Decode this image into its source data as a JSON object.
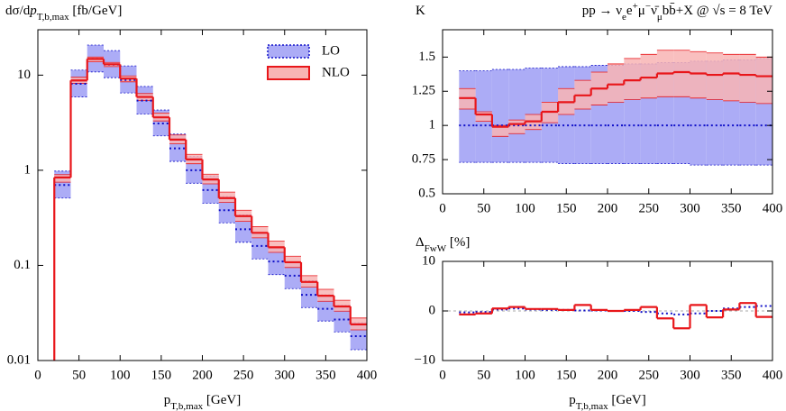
{
  "chart_data": [
    {
      "type": "histogram",
      "log_y": true,
      "ylabel": [
        {
          "text": "dσ/d"
        },
        {
          "text": "p"
        },
        {
          "text": "T,b,max",
          "shift": "sub"
        },
        {
          "text": " [fb/GeV]"
        }
      ],
      "xlabel": [
        {
          "text": "p"
        },
        {
          "text": "T,b,max",
          "shift": "sub"
        },
        {
          "text": " [GeV]"
        }
      ],
      "bins": [
        20,
        40,
        60,
        80,
        100,
        120,
        140,
        160,
        180,
        200,
        220,
        240,
        260,
        280,
        300,
        320,
        340,
        360,
        380,
        400
      ],
      "xlim": [
        0,
        400
      ],
      "xticks": [
        0,
        50,
        100,
        150,
        200,
        250,
        300,
        350,
        400
      ],
      "ylim": [
        0.01,
        30
      ],
      "yticks": [
        0.01,
        0.1,
        1,
        10
      ],
      "legend": "upper right",
      "series": [
        {
          "name": "LO",
          "color": "#1010c8",
          "fill": "#acacf6",
          "line_style": "dotted",
          "values": [
            0.7,
            8.1,
            14.8,
            12.9,
            8.9,
            5.4,
            3.1,
            1.7,
            1.0,
            0.62,
            0.38,
            0.24,
            0.16,
            0.11,
            0.078,
            0.049,
            0.035,
            0.027,
            0.018
          ],
          "band_low": [
            0.51,
            5.9,
            10.8,
            9.4,
            6.5,
            3.9,
            2.3,
            1.24,
            0.73,
            0.45,
            0.28,
            0.175,
            0.117,
            0.08,
            0.057,
            0.036,
            0.026,
            0.02,
            0.013
          ],
          "band_high": [
            0.98,
            11.3,
            20.7,
            18.1,
            12.5,
            7.6,
            4.3,
            2.4,
            1.4,
            0.87,
            0.53,
            0.34,
            0.22,
            0.154,
            0.109,
            0.069,
            0.049,
            0.038,
            0.025
          ]
        },
        {
          "name": "NLO",
          "color": "#e8161a",
          "fill": "#f8b4b4",
          "line_style": "solid",
          "values": [
            0.84,
            8.8,
            14.8,
            13,
            9.2,
            5.9,
            3.6,
            2.1,
            1.3,
            0.8,
            0.51,
            0.33,
            0.22,
            0.155,
            0.108,
            0.067,
            0.048,
            0.037,
            0.024
          ],
          "band_low": [
            0.75,
            8.2,
            13.8,
            12.3,
            8.5,
            5.4,
            3.3,
            1.9,
            1.17,
            0.72,
            0.46,
            0.29,
            0.195,
            0.137,
            0.095,
            0.059,
            0.042,
            0.033,
            0.021
          ],
          "band_high": [
            0.9,
            9.5,
            15.5,
            13.6,
            9.8,
            6.4,
            4.0,
            2.35,
            1.47,
            0.91,
            0.59,
            0.38,
            0.255,
            0.18,
            0.125,
            0.078,
            0.056,
            0.043,
            0.028
          ]
        }
      ]
    },
    {
      "type": "histogram",
      "ylabel": [
        {
          "text": "K"
        }
      ],
      "title": [
        {
          "text": "pp → ν"
        },
        {
          "text": "e",
          "shift": "sub"
        },
        {
          "text": "e"
        },
        {
          "text": "+",
          "shift": "super"
        },
        {
          "text": "μ"
        },
        {
          "text": "−",
          "shift": "super"
        },
        {
          "text": "ν̄"
        },
        {
          "text": "μ",
          "shift": "sub"
        },
        {
          "text": "bb̄+X @ √s = 8 TeV"
        }
      ],
      "bins": [
        20,
        40,
        60,
        80,
        100,
        120,
        140,
        160,
        180,
        200,
        220,
        240,
        260,
        280,
        300,
        320,
        340,
        360,
        380,
        400
      ],
      "xlim": [
        0,
        400
      ],
      "xticks": [
        0,
        50,
        100,
        150,
        200,
        250,
        300,
        350,
        400
      ],
      "ylim": [
        0.5,
        1.7
      ],
      "yticks": [
        0.5,
        0.75,
        1,
        1.25,
        1.5
      ],
      "series": [
        {
          "name": "LO",
          "color": "#1010c8",
          "fill": "#acacf6",
          "line_style": "dotted",
          "values": [
            1,
            1,
            1,
            1,
            1,
            1,
            1,
            1,
            1,
            1,
            1,
            1,
            1,
            1,
            1,
            1,
            1,
            1,
            1
          ],
          "band_low": [
            0.73,
            0.73,
            0.73,
            0.73,
            0.73,
            0.73,
            0.72,
            0.72,
            0.72,
            0.72,
            0.72,
            0.72,
            0.72,
            0.72,
            0.71,
            0.71,
            0.71,
            0.71,
            0.71
          ],
          "band_high": [
            1.4,
            1.4,
            1.41,
            1.41,
            1.42,
            1.42,
            1.43,
            1.43,
            1.44,
            1.44,
            1.45,
            1.45,
            1.46,
            1.46,
            1.47,
            1.47,
            1.48,
            1.48,
            1.49
          ]
        },
        {
          "name": "NLO",
          "color": "#e8161a",
          "fill": "#f8b4b4",
          "line_style": "solid",
          "values": [
            1.2,
            1.08,
            0.99,
            1.01,
            1.03,
            1.1,
            1.17,
            1.22,
            1.27,
            1.3,
            1.33,
            1.35,
            1.38,
            1.39,
            1.38,
            1.37,
            1.38,
            1.37,
            1.36
          ],
          "band_low": [
            1.12,
            1.03,
            0.92,
            0.94,
            0.97,
            1.02,
            1.08,
            1.12,
            1.15,
            1.17,
            1.19,
            1.2,
            1.21,
            1.21,
            1.2,
            1.19,
            1.18,
            1.17,
            1.16
          ],
          "band_high": [
            1.27,
            1.1,
            1.0,
            1.04,
            1.08,
            1.17,
            1.27,
            1.33,
            1.39,
            1.45,
            1.49,
            1.52,
            1.55,
            1.55,
            1.54,
            1.53,
            1.52,
            1.52,
            1.5
          ]
        }
      ]
    },
    {
      "type": "histogram",
      "zero_line": true,
      "ylabel": [
        {
          "text": "Δ"
        },
        {
          "text": "FwW",
          "shift": "sub"
        },
        {
          "text": " [%]"
        }
      ],
      "xlabel": [
        {
          "text": "p"
        },
        {
          "text": "T,b,max",
          "shift": "sub"
        },
        {
          "text": " [GeV]"
        }
      ],
      "bins": [
        20,
        40,
        60,
        80,
        100,
        120,
        140,
        160,
        180,
        200,
        220,
        240,
        260,
        280,
        300,
        320,
        340,
        360,
        380,
        400
      ],
      "xlim": [
        0,
        400
      ],
      "xticks": [
        0,
        50,
        100,
        150,
        200,
        250,
        300,
        350,
        400
      ],
      "ylim": [
        -10,
        10
      ],
      "yticks": [
        {
          "value": -10,
          "label": "−10"
        },
        0,
        10
      ],
      "series": [
        {
          "name": "LO",
          "color": "#1010c8",
          "line_style": "dotted",
          "values": [
            -0.3,
            -0.2,
            0.3,
            0.5,
            0.3,
            0.2,
            0.2,
            0.1,
            0.1,
            0,
            0,
            -0.2,
            -0.5,
            -0.7,
            -0.5,
            0,
            0.5,
            0.8,
            1.0
          ]
        },
        {
          "name": "NLO",
          "color": "#e8161a",
          "line_style": "solid",
          "values": [
            -0.7,
            -0.5,
            0.5,
            0.8,
            0.4,
            0.4,
            0.2,
            1.2,
            0.2,
            0,
            0.2,
            0.8,
            -1.5,
            -3.5,
            1.2,
            -1.3,
            0.3,
            1.6,
            -1.2
          ]
        }
      ]
    }
  ]
}
